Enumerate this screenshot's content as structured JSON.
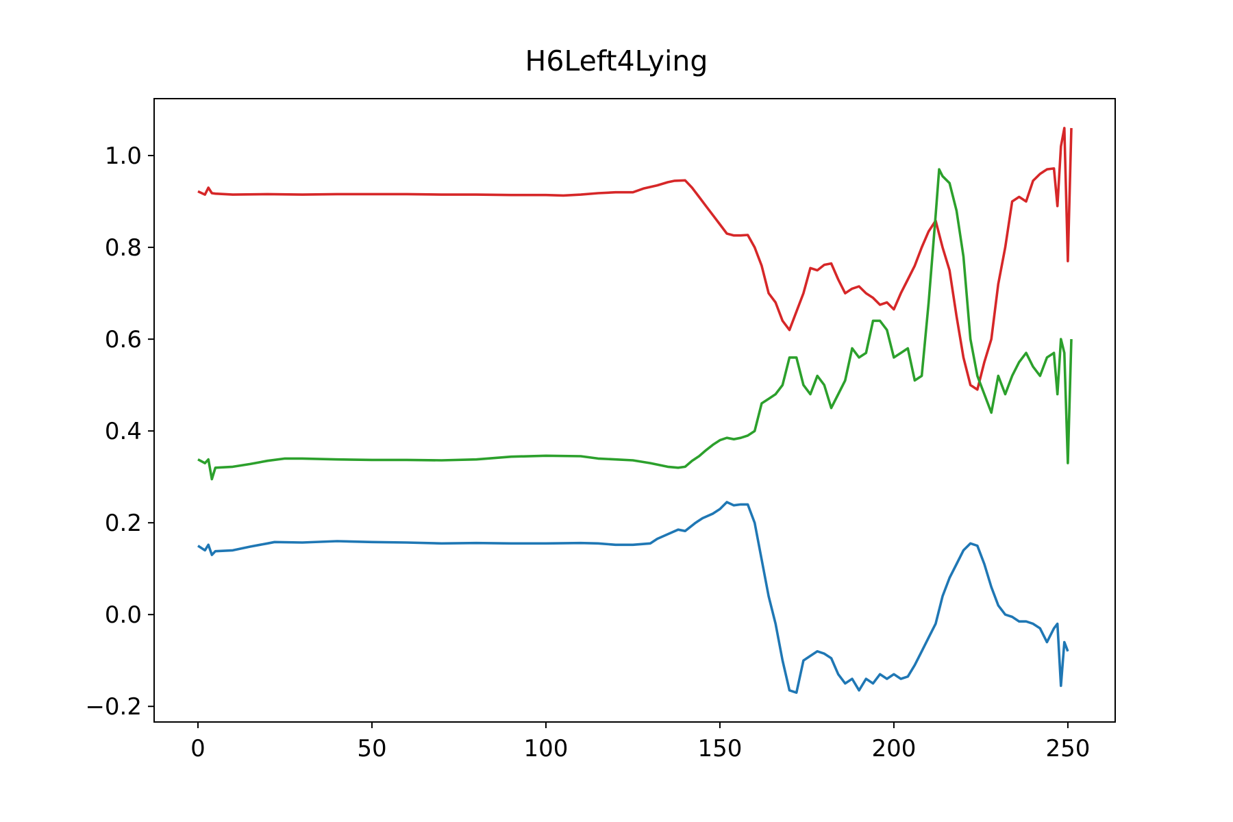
{
  "chart_data": {
    "type": "line",
    "title": "H6Left4Lying",
    "xlabel": "",
    "ylabel": "",
    "xlim": [
      -12.6,
      263.6
    ],
    "ylim": [
      -0.234,
      1.124
    ],
    "grid": false,
    "legend": "none",
    "x_ticks": [
      {
        "value": 0,
        "label": "0"
      },
      {
        "value": 50,
        "label": "50"
      },
      {
        "value": 100,
        "label": "100"
      },
      {
        "value": 150,
        "label": "150"
      },
      {
        "value": 200,
        "label": "200"
      },
      {
        "value": 250,
        "label": "250"
      }
    ],
    "y_ticks": [
      {
        "value": -0.2,
        "label": "−0.2"
      },
      {
        "value": 0.0,
        "label": "0.0"
      },
      {
        "value": 0.2,
        "label": "0.2"
      },
      {
        "value": 0.4,
        "label": "0.4"
      },
      {
        "value": 0.6,
        "label": "0.6"
      },
      {
        "value": 0.8,
        "label": "0.8"
      },
      {
        "value": 1.0,
        "label": "1.0"
      }
    ],
    "series": [
      {
        "color": "#1f77b4",
        "points": [
          [
            0,
            0.15
          ],
          [
            2,
            0.14
          ],
          [
            3,
            0.152
          ],
          [
            4,
            0.13
          ],
          [
            5,
            0.138
          ],
          [
            10,
            0.14
          ],
          [
            15,
            0.148
          ],
          [
            20,
            0.155
          ],
          [
            22,
            0.158
          ],
          [
            30,
            0.157
          ],
          [
            40,
            0.16
          ],
          [
            50,
            0.158
          ],
          [
            60,
            0.157
          ],
          [
            70,
            0.155
          ],
          [
            80,
            0.156
          ],
          [
            90,
            0.155
          ],
          [
            100,
            0.155
          ],
          [
            110,
            0.156
          ],
          [
            115,
            0.155
          ],
          [
            120,
            0.152
          ],
          [
            125,
            0.152
          ],
          [
            130,
            0.155
          ],
          [
            132,
            0.165
          ],
          [
            135,
            0.175
          ],
          [
            138,
            0.185
          ],
          [
            140,
            0.182
          ],
          [
            143,
            0.2
          ],
          [
            145,
            0.21
          ],
          [
            148,
            0.22
          ],
          [
            150,
            0.23
          ],
          [
            152,
            0.245
          ],
          [
            154,
            0.238
          ],
          [
            156,
            0.24
          ],
          [
            158,
            0.24
          ],
          [
            160,
            0.2
          ],
          [
            162,
            0.12
          ],
          [
            164,
            0.04
          ],
          [
            166,
            -0.02
          ],
          [
            168,
            -0.1
          ],
          [
            170,
            -0.165
          ],
          [
            172,
            -0.17
          ],
          [
            174,
            -0.1
          ],
          [
            176,
            -0.09
          ],
          [
            178,
            -0.08
          ],
          [
            180,
            -0.085
          ],
          [
            182,
            -0.095
          ],
          [
            184,
            -0.13
          ],
          [
            186,
            -0.15
          ],
          [
            188,
            -0.14
          ],
          [
            190,
            -0.165
          ],
          [
            192,
            -0.14
          ],
          [
            194,
            -0.15
          ],
          [
            196,
            -0.13
          ],
          [
            198,
            -0.14
          ],
          [
            200,
            -0.13
          ],
          [
            202,
            -0.14
          ],
          [
            204,
            -0.135
          ],
          [
            206,
            -0.11
          ],
          [
            208,
            -0.08
          ],
          [
            210,
            -0.05
          ],
          [
            212,
            -0.02
          ],
          [
            214,
            0.04
          ],
          [
            216,
            0.08
          ],
          [
            218,
            0.11
          ],
          [
            220,
            0.14
          ],
          [
            222,
            0.155
          ],
          [
            224,
            0.15
          ],
          [
            226,
            0.11
          ],
          [
            228,
            0.06
          ],
          [
            230,
            0.02
          ],
          [
            232,
            0.0
          ],
          [
            234,
            -0.005
          ],
          [
            236,
            -0.015
          ],
          [
            238,
            -0.015
          ],
          [
            240,
            -0.02
          ],
          [
            242,
            -0.03
          ],
          [
            244,
            -0.06
          ],
          [
            246,
            -0.03
          ],
          [
            247,
            -0.02
          ],
          [
            248,
            -0.155
          ],
          [
            249,
            -0.06
          ],
          [
            250,
            -0.08
          ]
        ]
      },
      {
        "color": "#d62728",
        "points": [
          [
            0,
            0.922
          ],
          [
            2,
            0.915
          ],
          [
            3,
            0.93
          ],
          [
            4,
            0.918
          ],
          [
            5,
            0.917
          ],
          [
            10,
            0.915
          ],
          [
            20,
            0.916
          ],
          [
            30,
            0.915
          ],
          [
            40,
            0.916
          ],
          [
            50,
            0.916
          ],
          [
            60,
            0.916
          ],
          [
            70,
            0.915
          ],
          [
            80,
            0.915
          ],
          [
            90,
            0.914
          ],
          [
            100,
            0.914
          ],
          [
            105,
            0.913
          ],
          [
            110,
            0.915
          ],
          [
            115,
            0.918
          ],
          [
            120,
            0.92
          ],
          [
            125,
            0.92
          ],
          [
            128,
            0.928
          ],
          [
            132,
            0.935
          ],
          [
            135,
            0.942
          ],
          [
            137,
            0.945
          ],
          [
            140,
            0.946
          ],
          [
            142,
            0.93
          ],
          [
            144,
            0.91
          ],
          [
            146,
            0.89
          ],
          [
            148,
            0.87
          ],
          [
            150,
            0.85
          ],
          [
            152,
            0.83
          ],
          [
            154,
            0.826
          ],
          [
            156,
            0.826
          ],
          [
            158,
            0.827
          ],
          [
            160,
            0.8
          ],
          [
            162,
            0.76
          ],
          [
            164,
            0.7
          ],
          [
            166,
            0.68
          ],
          [
            168,
            0.64
          ],
          [
            170,
            0.62
          ],
          [
            172,
            0.66
          ],
          [
            174,
            0.7
          ],
          [
            176,
            0.755
          ],
          [
            178,
            0.75
          ],
          [
            180,
            0.762
          ],
          [
            182,
            0.765
          ],
          [
            184,
            0.73
          ],
          [
            186,
            0.7
          ],
          [
            188,
            0.71
          ],
          [
            190,
            0.715
          ],
          [
            192,
            0.7
          ],
          [
            194,
            0.69
          ],
          [
            196,
            0.675
          ],
          [
            198,
            0.68
          ],
          [
            200,
            0.665
          ],
          [
            202,
            0.7
          ],
          [
            204,
            0.73
          ],
          [
            206,
            0.76
          ],
          [
            208,
            0.8
          ],
          [
            210,
            0.835
          ],
          [
            212,
            0.858
          ],
          [
            214,
            0.8
          ],
          [
            216,
            0.75
          ],
          [
            218,
            0.65
          ],
          [
            220,
            0.56
          ],
          [
            222,
            0.5
          ],
          [
            224,
            0.49
          ],
          [
            226,
            0.55
          ],
          [
            228,
            0.6
          ],
          [
            230,
            0.72
          ],
          [
            232,
            0.8
          ],
          [
            234,
            0.9
          ],
          [
            236,
            0.91
          ],
          [
            238,
            0.9
          ],
          [
            240,
            0.945
          ],
          [
            242,
            0.96
          ],
          [
            244,
            0.97
          ],
          [
            246,
            0.972
          ],
          [
            247,
            0.89
          ],
          [
            248,
            1.02
          ],
          [
            249,
            1.06
          ],
          [
            250,
            0.77
          ],
          [
            251,
            1.06
          ]
        ]
      },
      {
        "color": "#2ca02c",
        "points": [
          [
            0,
            0.338
          ],
          [
            2,
            0.33
          ],
          [
            3,
            0.338
          ],
          [
            4,
            0.295
          ],
          [
            5,
            0.32
          ],
          [
            10,
            0.322
          ],
          [
            15,
            0.328
          ],
          [
            20,
            0.335
          ],
          [
            25,
            0.34
          ],
          [
            30,
            0.34
          ],
          [
            40,
            0.338
          ],
          [
            50,
            0.337
          ],
          [
            60,
            0.337
          ],
          [
            70,
            0.336
          ],
          [
            80,
            0.338
          ],
          [
            90,
            0.344
          ],
          [
            100,
            0.346
          ],
          [
            110,
            0.345
          ],
          [
            115,
            0.34
          ],
          [
            120,
            0.338
          ],
          [
            125,
            0.336
          ],
          [
            130,
            0.33
          ],
          [
            135,
            0.322
          ],
          [
            138,
            0.32
          ],
          [
            140,
            0.322
          ],
          [
            142,
            0.335
          ],
          [
            144,
            0.345
          ],
          [
            146,
            0.358
          ],
          [
            148,
            0.37
          ],
          [
            150,
            0.38
          ],
          [
            152,
            0.385
          ],
          [
            154,
            0.382
          ],
          [
            156,
            0.385
          ],
          [
            158,
            0.39
          ],
          [
            160,
            0.4
          ],
          [
            162,
            0.46
          ],
          [
            164,
            0.47
          ],
          [
            166,
            0.48
          ],
          [
            168,
            0.5
          ],
          [
            170,
            0.56
          ],
          [
            172,
            0.56
          ],
          [
            174,
            0.5
          ],
          [
            176,
            0.48
          ],
          [
            178,
            0.52
          ],
          [
            180,
            0.5
          ],
          [
            182,
            0.45
          ],
          [
            184,
            0.48
          ],
          [
            186,
            0.51
          ],
          [
            188,
            0.58
          ],
          [
            190,
            0.56
          ],
          [
            192,
            0.57
          ],
          [
            194,
            0.64
          ],
          [
            196,
            0.64
          ],
          [
            198,
            0.62
          ],
          [
            200,
            0.56
          ],
          [
            202,
            0.57
          ],
          [
            204,
            0.58
          ],
          [
            206,
            0.51
          ],
          [
            208,
            0.52
          ],
          [
            210,
            0.68
          ],
          [
            212,
            0.87
          ],
          [
            213,
            0.97
          ],
          [
            214,
            0.955
          ],
          [
            216,
            0.94
          ],
          [
            218,
            0.88
          ],
          [
            220,
            0.78
          ],
          [
            222,
            0.6
          ],
          [
            224,
            0.52
          ],
          [
            226,
            0.48
          ],
          [
            228,
            0.44
          ],
          [
            230,
            0.52
          ],
          [
            232,
            0.48
          ],
          [
            234,
            0.52
          ],
          [
            236,
            0.55
          ],
          [
            238,
            0.57
          ],
          [
            240,
            0.54
          ],
          [
            242,
            0.52
          ],
          [
            244,
            0.56
          ],
          [
            246,
            0.57
          ],
          [
            247,
            0.48
          ],
          [
            248,
            0.6
          ],
          [
            249,
            0.57
          ],
          [
            250,
            0.33
          ],
          [
            251,
            0.6
          ]
        ]
      }
    ]
  }
}
